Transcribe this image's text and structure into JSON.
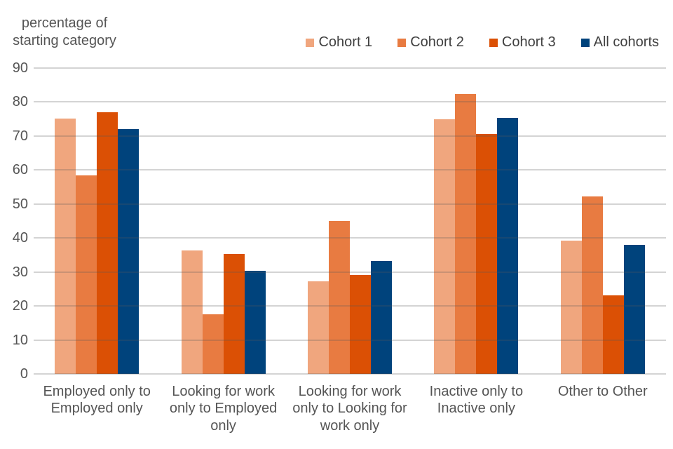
{
  "page": {
    "background": "#ffffff"
  },
  "chart_data": {
    "type": "bar",
    "y_axis_title": "percentage of starting category",
    "categories": [
      "Employed only to Employed only",
      "Looking for work only to Employed only",
      "Looking for work only to Looking for work only",
      "Inactive only to Inactive only",
      "Other to Other"
    ],
    "series": [
      {
        "name": "Cohort 1",
        "color": "#F0A67E",
        "values": [
          75.2,
          36.3,
          27.2,
          75.0,
          39.3
        ]
      },
      {
        "name": "Cohort 2",
        "color": "#E87B41",
        "values": [
          58.5,
          17.5,
          45.0,
          82.3,
          52.2
        ]
      },
      {
        "name": "Cohort 3",
        "color": "#DB5005",
        "values": [
          76.9,
          35.2,
          29.2,
          70.5,
          23.2
        ]
      },
      {
        "name": "All cohorts",
        "color": "#00437C",
        "values": [
          72.1,
          30.3,
          33.3,
          75.3,
          38.0
        ]
      }
    ],
    "ylim": [
      0,
      90
    ],
    "yticks": [
      0,
      10,
      20,
      30,
      40,
      50,
      60,
      70,
      80,
      90
    ],
    "grid": "horizontal",
    "gridline_color": "#D9D9D9",
    "legend_position": "top-right",
    "text_color": "#555555",
    "legend_text_color": "#404040"
  }
}
